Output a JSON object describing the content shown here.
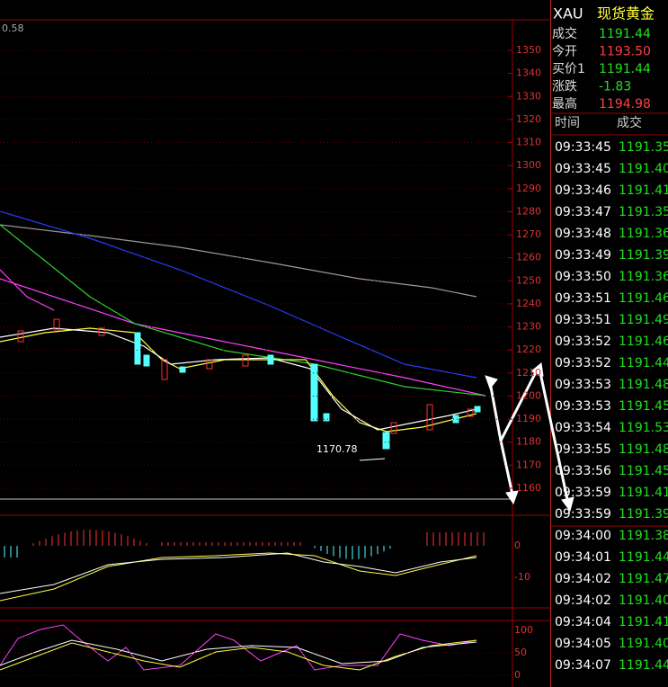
{
  "header": {
    "symbol": "XAU",
    "name": "现货黄金",
    "corner": "0.58"
  },
  "quote": [
    {
      "label": "成交",
      "value": "1191.44",
      "tone": "down"
    },
    {
      "label": "今开",
      "value": "1193.50",
      "tone": "up"
    },
    {
      "label": "买价1",
      "value": "1191.44",
      "tone": "down"
    },
    {
      "label": "涨跌",
      "value": "-1.83",
      "tone": "down"
    },
    {
      "label": "最高",
      "value": "1194.98",
      "tone": "up"
    }
  ],
  "trades_header": {
    "time": "时间",
    "price": "成交"
  },
  "trades": [
    [
      "09:33:45",
      "1191.35"
    ],
    [
      "09:33:45",
      "1191.40"
    ],
    [
      "09:33:46",
      "1191.41"
    ],
    [
      "09:33:47",
      "1191.35"
    ],
    [
      "09:33:48",
      "1191.36"
    ],
    [
      "09:33:49",
      "1191.39"
    ],
    [
      "09:33:50",
      "1191.36"
    ],
    [
      "09:33:51",
      "1191.46"
    ],
    [
      "09:33:51",
      "1191.49"
    ],
    [
      "09:33:52",
      "1191.46"
    ],
    [
      "09:33:52",
      "1191.44"
    ],
    [
      "09:33:53",
      "1191.48"
    ],
    [
      "09:33:53",
      "1191.45"
    ],
    [
      "09:33:54",
      "1191.53"
    ],
    [
      "09:33:55",
      "1191.48"
    ],
    [
      "09:33:56",
      "1191.45"
    ],
    [
      "09:33:59",
      "1191.41"
    ],
    [
      "09:33:59",
      "1191.39"
    ],
    [
      "09:34:00",
      "1191.38"
    ],
    [
      "09:34:01",
      "1191.44"
    ],
    [
      "09:34:02",
      "1191.47"
    ],
    [
      "09:34:02",
      "1191.40"
    ],
    [
      "09:34:04",
      "1191.41"
    ],
    [
      "09:34:05",
      "1191.40"
    ],
    [
      "09:34:07",
      "1191.44"
    ]
  ],
  "price_axis": [
    "1350",
    "1340",
    "1330",
    "1320",
    "1310",
    "1300",
    "1290",
    "1280",
    "1270",
    "1260",
    "1250",
    "1240",
    "1230",
    "1220",
    "1210",
    "1200",
    "1190",
    "1180",
    "1170",
    "1160"
  ],
  "low_annotation": "1170.78",
  "macd_axis": [
    "0",
    "-10"
  ],
  "kdj_axis": [
    "100",
    "50",
    "0"
  ]
}
